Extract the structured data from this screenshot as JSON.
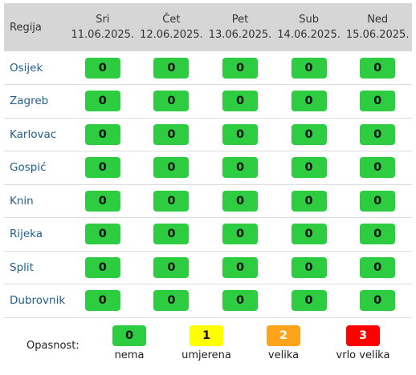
{
  "header": {
    "region_label": "Regija"
  },
  "days": [
    {
      "name": "Sri",
      "date": "11.06.2025."
    },
    {
      "name": "Čet",
      "date": "12.06.2025."
    },
    {
      "name": "Pet",
      "date": "13.06.2025."
    },
    {
      "name": "Sub",
      "date": "14.06.2025."
    },
    {
      "name": "Ned",
      "date": "15.06.2025."
    }
  ],
  "rows": [
    {
      "region": "Osijek",
      "levels": [
        "0",
        "0",
        "0",
        "0",
        "0"
      ]
    },
    {
      "region": "Zagreb",
      "levels": [
        "0",
        "0",
        "0",
        "0",
        "0"
      ]
    },
    {
      "region": "Karlovac",
      "levels": [
        "0",
        "0",
        "0",
        "0",
        "0"
      ]
    },
    {
      "region": "Gospić",
      "levels": [
        "0",
        "0",
        "0",
        "0",
        "0"
      ]
    },
    {
      "region": "Knin",
      "levels": [
        "0",
        "0",
        "0",
        "0",
        "0"
      ]
    },
    {
      "region": "Rijeka",
      "levels": [
        "0",
        "0",
        "0",
        "0",
        "0"
      ]
    },
    {
      "region": "Split",
      "levels": [
        "0",
        "0",
        "0",
        "0",
        "0"
      ]
    },
    {
      "region": "Dubrovnik",
      "levels": [
        "0",
        "0",
        "0",
        "0",
        "0"
      ]
    }
  ],
  "legend": {
    "title": "Opasnost:",
    "items": [
      {
        "value": "0",
        "label": "nema",
        "color": "#2ecc40"
      },
      {
        "value": "1",
        "label": "umjerena",
        "color": "#ffff00"
      },
      {
        "value": "2",
        "label": "velika",
        "color": "#ffa31a"
      },
      {
        "value": "3",
        "label": "vrlo velika",
        "color": "#ff0000"
      }
    ]
  }
}
